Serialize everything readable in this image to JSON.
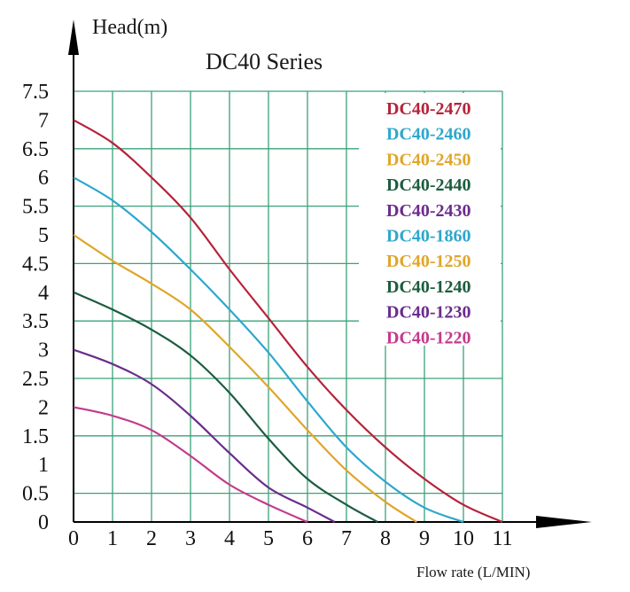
{
  "chart_data": {
    "type": "line",
    "title": "DC40 Series",
    "ylabel": "Head(m)",
    "xlabel": "Flow rate (L/MIN)",
    "xlim": [
      0,
      11
    ],
    "ylim": [
      0,
      7.5
    ],
    "xticks": [
      "0",
      "1",
      "2",
      "3",
      "4",
      "5",
      "6",
      "7",
      "8",
      "9",
      "10",
      "11"
    ],
    "yticks": [
      "0",
      "0.5",
      "1",
      "1.5",
      "2",
      "2.5",
      "3",
      "3.5",
      "4",
      "4.5",
      "5",
      "5.5",
      "6",
      "6.5",
      "7",
      "7.5"
    ],
    "grid": true,
    "legend": {
      "placement": "top-right",
      "entries": [
        {
          "label": "DC40-2470",
          "color": "#b5233a"
        },
        {
          "label": "DC40-2460",
          "color": "#2ea7cc"
        },
        {
          "label": "DC40-2450",
          "color": "#e0a62a"
        },
        {
          "label": "DC40-2440",
          "color": "#1c5c3f"
        },
        {
          "label": "DC40-2430",
          "color": "#6b2c8c"
        },
        {
          "label": "DC40-1860",
          "color": "#2ea7cc"
        },
        {
          "label": "DC40-1250",
          "color": "#e0a62a"
        },
        {
          "label": "DC40-1240",
          "color": "#1c5c3f"
        },
        {
          "label": "DC40-1230",
          "color": "#6b2c8c"
        },
        {
          "label": "DC40-1220",
          "color": "#c33a8c"
        }
      ]
    },
    "series": [
      {
        "color": "#b5233a",
        "x": [
          0,
          1,
          2,
          3,
          4,
          5,
          6,
          7,
          8,
          9,
          10,
          11
        ],
        "y": [
          7.0,
          6.6,
          6.0,
          5.3,
          4.4,
          3.55,
          2.7,
          1.95,
          1.3,
          0.75,
          0.3,
          0
        ]
      },
      {
        "color": "#2ea7cc",
        "x": [
          0,
          1,
          2,
          3,
          4,
          5,
          6,
          7,
          8,
          9,
          10
        ],
        "y": [
          6.0,
          5.6,
          5.05,
          4.4,
          3.7,
          2.95,
          2.1,
          1.3,
          0.7,
          0.25,
          0
        ]
      },
      {
        "color": "#e0a62a",
        "x": [
          0,
          1,
          2,
          3,
          4,
          5,
          6,
          7,
          8,
          8.8
        ],
        "y": [
          5.0,
          4.55,
          4.15,
          3.7,
          3.05,
          2.35,
          1.6,
          0.9,
          0.35,
          0
        ]
      },
      {
        "color": "#1c5c3f",
        "x": [
          0,
          1,
          2,
          3,
          4,
          5,
          6,
          7,
          7.8
        ],
        "y": [
          4.0,
          3.7,
          3.35,
          2.9,
          2.25,
          1.45,
          0.75,
          0.3,
          0
        ]
      },
      {
        "color": "#6b2c8c",
        "x": [
          0,
          1,
          2,
          3,
          4,
          5,
          6,
          6.7
        ],
        "y": [
          3.0,
          2.75,
          2.4,
          1.85,
          1.2,
          0.6,
          0.25,
          0
        ]
      },
      {
        "color": "#c33a8c",
        "x": [
          0,
          1,
          2,
          3,
          4,
          5,
          6
        ],
        "y": [
          2.0,
          1.85,
          1.6,
          1.15,
          0.65,
          0.3,
          0
        ]
      }
    ]
  }
}
